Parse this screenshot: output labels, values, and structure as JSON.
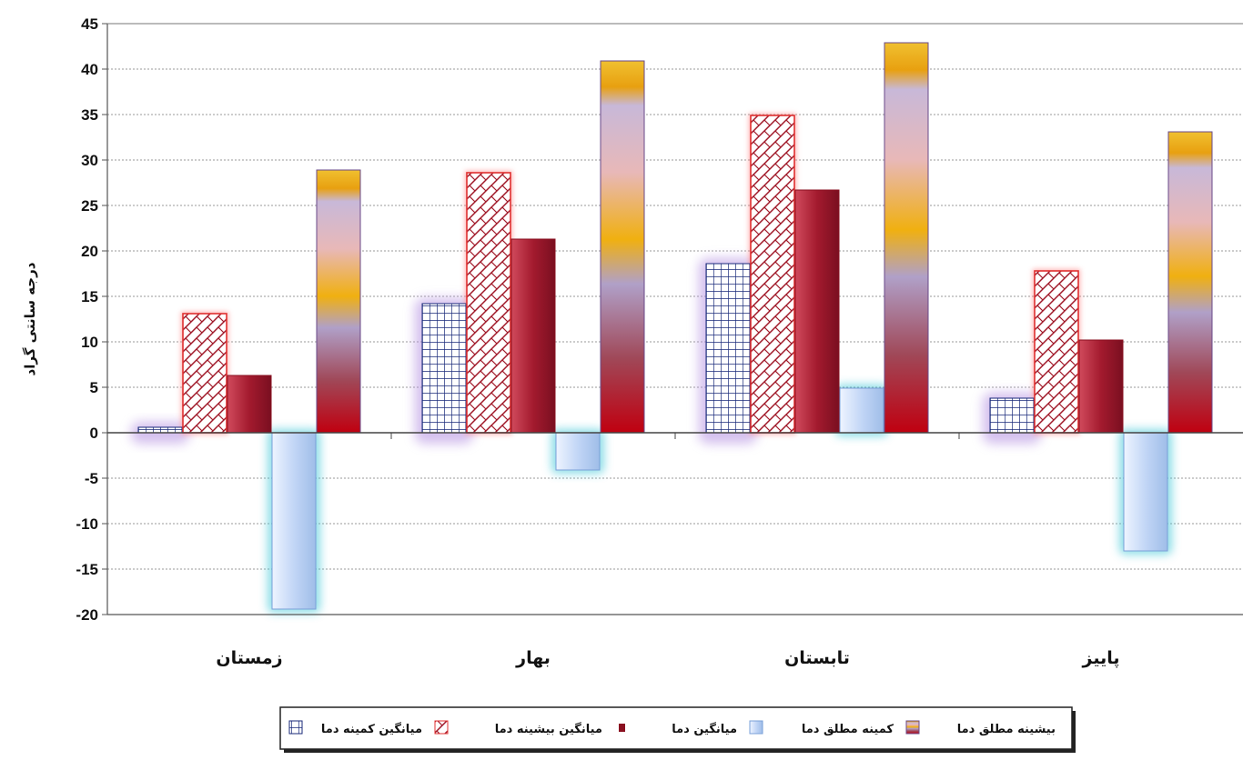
{
  "chart_data": {
    "type": "bar",
    "ylabel": "درجه سانتی گراد",
    "xlabel": "",
    "ylim": [
      -20,
      45
    ],
    "yticks": [
      45,
      40,
      35,
      30,
      25,
      20,
      15,
      10,
      5,
      0,
      -5,
      -10,
      -15,
      -20
    ],
    "grid": true,
    "legend_position": "bottom",
    "categories": [
      "زمستان",
      "بهار",
      "تابستان",
      "پاییز"
    ],
    "series": [
      {
        "name": "میانگین کمینه دما",
        "values": [
          0.6,
          14.2,
          18.6,
          3.8
        ],
        "color": "#2b3a8f",
        "style": "grid"
      },
      {
        "name": "میانگین بیشینه دما",
        "values": [
          13.1,
          28.6,
          34.9,
          17.8
        ],
        "color": "#b01020",
        "style": "hatch"
      },
      {
        "name": "میانگین دما",
        "values": [
          6.3,
          21.3,
          26.7,
          10.2
        ],
        "color": "#a82035",
        "style": "solid"
      },
      {
        "name": "کمینه مطلق دما",
        "values": [
          -19.4,
          -4.1,
          4.9,
          -13.0
        ],
        "color": "#a8c4ee",
        "style": "light"
      },
      {
        "name": "بیشینه مطلق دما",
        "values": [
          28.9,
          40.9,
          42.9,
          33.1
        ],
        "color": "#e8a818",
        "style": "gradient"
      }
    ],
    "legend_order": [
      "بیشینه مطلق دما",
      "کمینه مطلق دما",
      "میانگین دما",
      "میانگین بیشینه دما",
      "میانگین کمینه دما"
    ]
  }
}
